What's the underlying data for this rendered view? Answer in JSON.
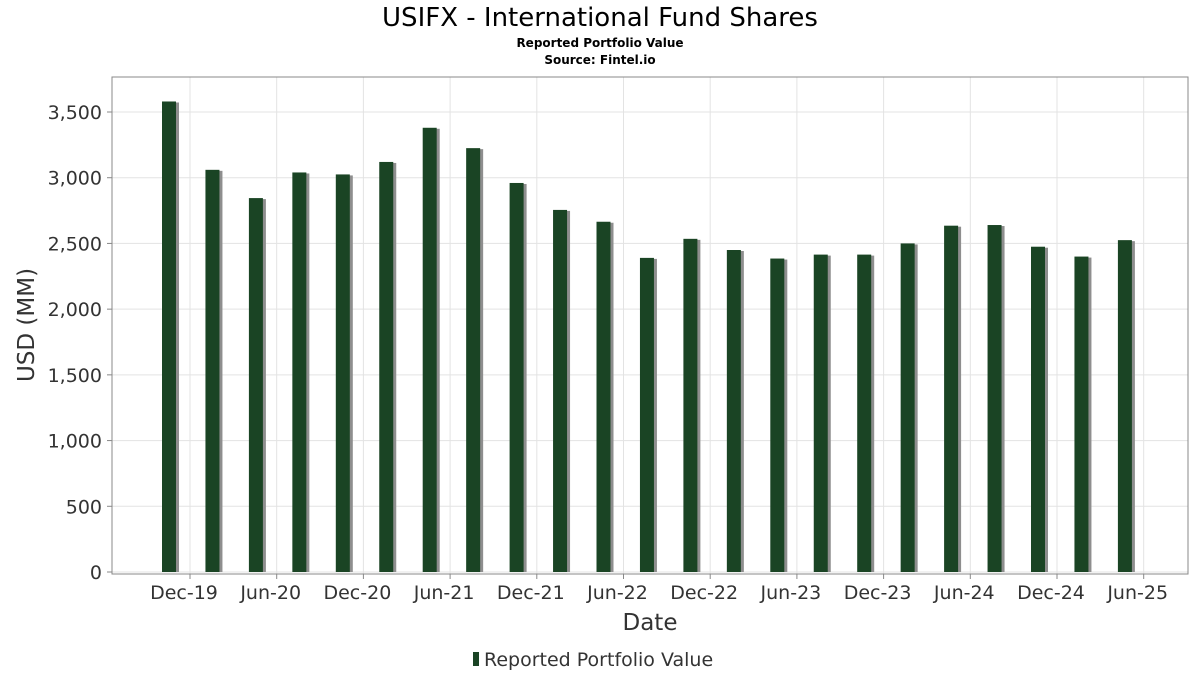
{
  "title": "USIFX - International Fund Shares",
  "subtitle": "Reported Portfolio Value",
  "source": "Source: Fintel.io",
  "chart_data": {
    "type": "bar",
    "title": "USIFX - International Fund Shares",
    "subtitle": "Reported Portfolio Value",
    "xlabel": "Date",
    "ylabel": "USD (MM)",
    "ylim": [
      0,
      3750
    ],
    "yticks": [
      0,
      500,
      1000,
      1500,
      2000,
      2500,
      3000,
      3500
    ],
    "ytick_labels": [
      "0",
      "500",
      "1,000",
      "1,500",
      "2,000",
      "2,500",
      "3,000",
      "3,500"
    ],
    "xticks": [
      "Dec-19",
      "Jun-20",
      "Dec-20",
      "Jun-21",
      "Dec-21",
      "Jun-22",
      "Dec-22",
      "Jun-23",
      "Dec-23",
      "Jun-24",
      "Dec-24",
      "Jun-25"
    ],
    "grid": true,
    "legend_position": "bottom-center",
    "bar_color": "#1a4424",
    "series": [
      {
        "name": "Reported Portfolio Value",
        "values": [
          3580,
          3060,
          2845,
          3040,
          3025,
          3120,
          3380,
          3225,
          2960,
          2755,
          2665,
          2390,
          2535,
          2450,
          2385,
          2415,
          2415,
          2500,
          2635,
          2640,
          2475,
          2400,
          2525
        ]
      }
    ]
  }
}
